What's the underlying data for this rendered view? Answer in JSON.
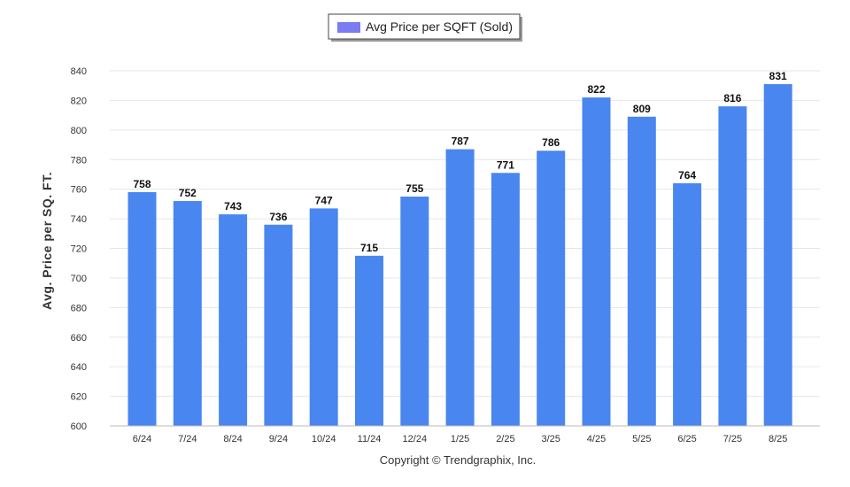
{
  "chart_data": {
    "type": "bar",
    "categories": [
      "6/24",
      "7/24",
      "8/24",
      "9/24",
      "10/24",
      "11/24",
      "12/24",
      "1/25",
      "2/25",
      "3/25",
      "4/25",
      "5/25",
      "6/25",
      "7/25",
      "8/25"
    ],
    "series": [
      {
        "name": "Avg Price per SQFT (Sold)",
        "values": [
          758,
          752,
          743,
          736,
          747,
          715,
          755,
          787,
          771,
          786,
          822,
          809,
          764,
          816,
          831
        ],
        "color": "#4a86f0"
      }
    ],
    "xlabel": "",
    "ylabel": "Avg. Price per SQ. FT.",
    "ylim": [
      600,
      840
    ],
    "yticks": [
      600,
      620,
      640,
      660,
      680,
      700,
      720,
      740,
      760,
      780,
      800,
      820,
      840
    ],
    "grid": true,
    "legend": "top-center",
    "legend_swatch_color": "#7b7bf2"
  },
  "footer": {
    "copyright": "Copyright © Trendgraphix, Inc."
  }
}
